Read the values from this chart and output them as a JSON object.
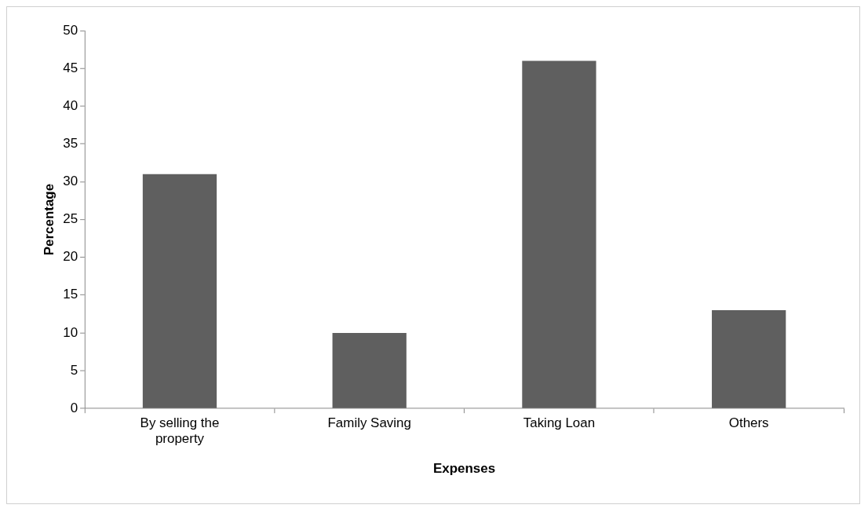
{
  "chart_data": {
    "type": "bar",
    "xlabel": "Expenses",
    "ylabel": "Percentage",
    "categories": [
      "By selling the property",
      "Family Saving",
      "Taking Loan",
      "Others"
    ],
    "values": [
      31,
      10,
      46,
      13
    ],
    "color": "#5f5f5f",
    "ylim": [
      0,
      50
    ],
    "yticks": [
      0,
      5,
      10,
      15,
      20,
      25,
      30,
      35,
      40,
      45,
      50
    ],
    "grid": false,
    "legend": false
  }
}
